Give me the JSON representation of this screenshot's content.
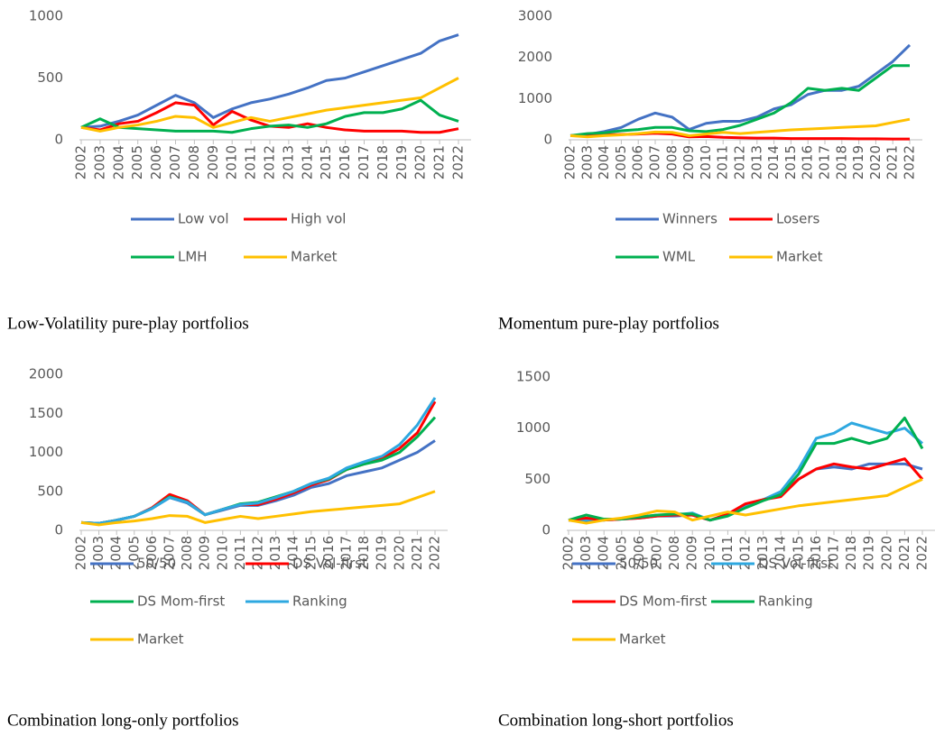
{
  "chart_data": [
    {
      "type": "line",
      "caption": "Low-Volatility pure-play portfolios",
      "categories": [
        "2002",
        "2003",
        "2004",
        "2005",
        "2006",
        "2007",
        "2008",
        "2009",
        "2010",
        "2011",
        "2012",
        "2013",
        "2014",
        "2015",
        "2016",
        "2017",
        "2018",
        "2019",
        "2020",
        "2021",
        "2022"
      ],
      "ylim": [
        0,
        1000
      ],
      "yticks": [
        0,
        500,
        1000
      ],
      "grid": false,
      "series": [
        {
          "name": "Low vol",
          "color": "#4472c4",
          "values": [
            100,
            110,
            150,
            200,
            280,
            360,
            300,
            180,
            250,
            300,
            330,
            370,
            420,
            480,
            500,
            550,
            600,
            650,
            700,
            800,
            850
          ]
        },
        {
          "name": "High vol",
          "color": "#ff0000",
          "values": [
            100,
            80,
            130,
            150,
            220,
            300,
            280,
            120,
            230,
            160,
            110,
            100,
            130,
            100,
            80,
            70,
            70,
            70,
            60,
            60,
            90
          ]
        },
        {
          "name": "LMH",
          "color": "#00b050",
          "values": [
            100,
            170,
            100,
            90,
            80,
            70,
            70,
            70,
            60,
            90,
            110,
            120,
            100,
            130,
            190,
            220,
            220,
            250,
            320,
            200,
            150
          ]
        },
        {
          "name": "Market",
          "color": "#ffc000",
          "values": [
            100,
            70,
            100,
            120,
            150,
            190,
            180,
            100,
            140,
            180,
            150,
            180,
            210,
            240,
            260,
            280,
            300,
            320,
            340,
            420,
            500
          ]
        }
      ]
    },
    {
      "type": "line",
      "caption": "Momentum pure-play portfolios",
      "categories": [
        "2002",
        "2003",
        "2004",
        "2005",
        "2006",
        "2007",
        "2008",
        "2009",
        "2010",
        "2011",
        "2012",
        "2013",
        "2014",
        "2015",
        "2016",
        "2017",
        "2018",
        "2019",
        "2020",
        "2021",
        "2022"
      ],
      "ylim": [
        0,
        3000
      ],
      "yticks": [
        0,
        1000,
        2000,
        3000
      ],
      "grid": false,
      "series": [
        {
          "name": "Winners",
          "color": "#4472c4",
          "values": [
            100,
            130,
            200,
            300,
            500,
            650,
            550,
            250,
            400,
            450,
            450,
            550,
            750,
            850,
            1100,
            1200,
            1200,
            1300,
            1600,
            1900,
            2300
          ]
        },
        {
          "name": "Losers",
          "color": "#ff0000",
          "values": [
            100,
            90,
            120,
            130,
            140,
            160,
            140,
            70,
            80,
            60,
            50,
            40,
            40,
            30,
            30,
            30,
            30,
            25,
            25,
            20,
            20
          ]
        },
        {
          "name": "WML",
          "color": "#00b050",
          "values": [
            100,
            150,
            170,
            220,
            250,
            300,
            300,
            220,
            200,
            250,
            350,
            500,
            650,
            900,
            1250,
            1200,
            1250,
            1200,
            1500,
            1800,
            1800
          ]
        },
        {
          "name": "Market",
          "color": "#ffc000",
          "values": [
            100,
            70,
            100,
            120,
            150,
            190,
            180,
            100,
            140,
            180,
            150,
            180,
            210,
            240,
            260,
            280,
            300,
            320,
            340,
            420,
            500
          ]
        }
      ]
    },
    {
      "type": "line",
      "caption": "Combination long-only portfolios",
      "categories": [
        "2002",
        "2003",
        "2004",
        "2005",
        "2006",
        "2007",
        "2008",
        "2009",
        "2010",
        "2011",
        "2012",
        "2013",
        "2014",
        "2015",
        "2016",
        "2017",
        "2018",
        "2019",
        "2020",
        "2021",
        "2022"
      ],
      "ylim": [
        0,
        2000
      ],
      "yticks": [
        0,
        500,
        1000,
        1500,
        2000
      ],
      "grid": false,
      "series": [
        {
          "name": "50/50",
          "color": "#4472c4",
          "values": [
            100,
            90,
            130,
            180,
            280,
            420,
            350,
            200,
            260,
            320,
            320,
            380,
            450,
            550,
            600,
            700,
            750,
            800,
            900,
            1000,
            1150
          ]
        },
        {
          "name": "DS Vol-first",
          "color": "#ff0000",
          "values": [
            100,
            90,
            130,
            180,
            290,
            460,
            380,
            200,
            270,
            330,
            330,
            400,
            480,
            580,
            650,
            780,
            850,
            920,
            1050,
            1250,
            1650
          ]
        },
        {
          "name": "DS Mom-first",
          "color": "#00b050",
          "values": [
            100,
            90,
            130,
            180,
            280,
            430,
            360,
            200,
            270,
            340,
            360,
            430,
            500,
            600,
            660,
            780,
            850,
            900,
            1000,
            1200,
            1450
          ]
        },
        {
          "name": "Ranking",
          "color": "#2ea8e0",
          "values": [
            100,
            90,
            130,
            180,
            280,
            420,
            360,
            200,
            270,
            330,
            350,
            420,
            500,
            600,
            670,
            800,
            880,
            950,
            1100,
            1350,
            1700
          ]
        },
        {
          "name": "Market",
          "color": "#ffc000",
          "values": [
            100,
            70,
            100,
            120,
            150,
            190,
            180,
            100,
            140,
            180,
            150,
            180,
            210,
            240,
            260,
            280,
            300,
            320,
            340,
            420,
            500
          ]
        }
      ]
    },
    {
      "type": "line",
      "caption": "Combination long-short portfolios",
      "categories": [
        "2002",
        "2003",
        "2004",
        "2005",
        "2006",
        "2007",
        "2008",
        "2009",
        "2010",
        "2011",
        "2012",
        "2013",
        "2014",
        "2015",
        "2016",
        "2017",
        "2018",
        "2019",
        "2020",
        "2021",
        "2022"
      ],
      "ylim": [
        0,
        1500
      ],
      "yticks": [
        0,
        500,
        1000,
        1500
      ],
      "grid": false,
      "series": [
        {
          "name": "50/50",
          "color": "#4472c4",
          "values": [
            100,
            90,
            100,
            110,
            120,
            140,
            140,
            150,
            100,
            150,
            250,
            300,
            350,
            500,
            600,
            620,
            600,
            650,
            650,
            650,
            600
          ]
        },
        {
          "name": "DS Vol-first",
          "color": "#2ea8e0",
          "values": [
            100,
            100,
            100,
            110,
            130,
            150,
            150,
            170,
            100,
            150,
            230,
            300,
            380,
            600,
            900,
            950,
            1050,
            1000,
            950,
            1000,
            850
          ]
        },
        {
          "name": "DS Mom-first",
          "color": "#ff0000",
          "values": [
            100,
            120,
            100,
            110,
            120,
            140,
            150,
            150,
            100,
            160,
            260,
            300,
            330,
            500,
            600,
            650,
            620,
            600,
            650,
            700,
            500
          ]
        },
        {
          "name": "Ranking",
          "color": "#00b050",
          "values": [
            100,
            150,
            110,
            110,
            130,
            150,
            160,
            160,
            100,
            140,
            220,
            290,
            350,
            550,
            850,
            850,
            900,
            850,
            900,
            1100,
            800
          ]
        },
        {
          "name": "Market",
          "color": "#ffc000",
          "values": [
            100,
            70,
            100,
            120,
            150,
            190,
            180,
            100,
            140,
            180,
            150,
            180,
            210,
            240,
            260,
            280,
            300,
            320,
            340,
            420,
            500
          ]
        }
      ]
    }
  ]
}
